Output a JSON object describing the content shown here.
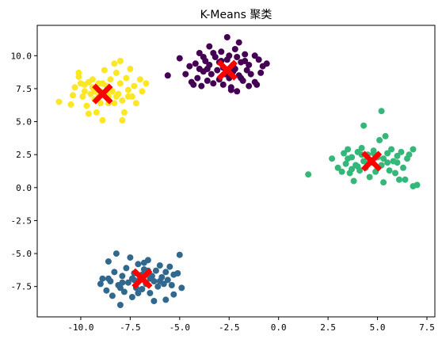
{
  "chart_data": {
    "type": "scatter",
    "title": "K-Means 聚类",
    "xlabel": "",
    "ylabel": "",
    "xlim": [
      -12.2,
      7.9
    ],
    "ylim": [
      -9.8,
      12.3
    ],
    "xticks": [
      -10.0,
      -7.5,
      -5.0,
      -2.5,
      0.0,
      2.5,
      5.0,
      7.5
    ],
    "xtick_labels": [
      "-10.0",
      "-7.5",
      "-5.0",
      "-2.5",
      "0.0",
      "2.5",
      "5.0",
      "7.5"
    ],
    "yticks": [
      -7.5,
      -5.0,
      -2.5,
      0.0,
      2.5,
      5.0,
      7.5,
      10.0
    ],
    "ytick_labels": [
      "-7.5",
      "-5.0",
      "-2.5",
      "0.0",
      "2.5",
      "5.0",
      "7.5",
      "10.0"
    ],
    "grid": false,
    "legend": "none",
    "clusters": [
      {
        "color": "#440154",
        "points": [
          [
            -5.6,
            8.5
          ],
          [
            -5.0,
            9.8
          ],
          [
            -4.7,
            8.6
          ],
          [
            -4.5,
            9.2
          ],
          [
            -4.4,
            8.0
          ],
          [
            -4.3,
            7.8
          ],
          [
            -4.2,
            9.4
          ],
          [
            -4.1,
            8.3
          ],
          [
            -4.0,
            10.2
          ],
          [
            -4.0,
            9.0
          ],
          [
            -3.9,
            7.7
          ],
          [
            -3.8,
            8.8
          ],
          [
            -3.7,
            9.6
          ],
          [
            -3.6,
            8.1
          ],
          [
            -3.5,
            10.7
          ],
          [
            -3.5,
            9.3
          ],
          [
            -3.4,
            8.6
          ],
          [
            -3.3,
            7.9
          ],
          [
            -3.2,
            9.9
          ],
          [
            -3.1,
            8.9
          ],
          [
            -3.0,
            9.5
          ],
          [
            -3.0,
            8.2
          ],
          [
            -2.9,
            10.3
          ],
          [
            -2.8,
            9.1
          ],
          [
            -2.8,
            7.8
          ],
          [
            -2.7,
            8.6
          ],
          [
            -2.6,
            9.7
          ],
          [
            -2.5,
            10.0
          ],
          [
            -2.5,
            8.3
          ],
          [
            -2.4,
            7.6
          ],
          [
            -2.3,
            9.3
          ],
          [
            -2.3,
            8.8
          ],
          [
            -2.2,
            10.5
          ],
          [
            -2.1,
            9.9
          ],
          [
            -2.1,
            7.3
          ],
          [
            -2.0,
            8.5
          ],
          [
            -2.0,
            11.0
          ],
          [
            -1.9,
            9.5
          ],
          [
            -1.8,
            8.1
          ],
          [
            -1.7,
            10.1
          ],
          [
            -1.6,
            8.9
          ],
          [
            -1.5,
            9.3
          ],
          [
            -1.5,
            7.7
          ],
          [
            -1.4,
            8.6
          ],
          [
            -1.2,
            10.0
          ],
          [
            -1.0,
            9.7
          ],
          [
            -0.9,
            8.7
          ],
          [
            -1.1,
            7.8
          ],
          [
            -2.6,
            11.4
          ],
          [
            -0.8,
            9.2
          ],
          [
            -1.2,
            8.0
          ],
          [
            -3.3,
            10.2
          ],
          [
            -2.9,
            9.6
          ],
          [
            -3.8,
            9.9
          ],
          [
            -2.2,
            9.0
          ],
          [
            -1.7,
            9.6
          ],
          [
            -2.4,
            7.4
          ],
          [
            -1.9,
            8.3
          ],
          [
            -3.6,
            9.0
          ],
          [
            -0.6,
            9.4
          ]
        ]
      },
      {
        "color": "#fde725",
        "points": [
          [
            -11.1,
            6.5
          ],
          [
            -10.5,
            6.3
          ],
          [
            -10.4,
            7.0
          ],
          [
            -10.3,
            7.6
          ],
          [
            -10.1,
            8.7
          ],
          [
            -10.0,
            7.9
          ],
          [
            -9.9,
            6.9
          ],
          [
            -9.8,
            7.3
          ],
          [
            -9.7,
            6.2
          ],
          [
            -9.6,
            8.0
          ],
          [
            -9.5,
            7.1
          ],
          [
            -9.4,
            7.6
          ],
          [
            -9.3,
            6.7
          ],
          [
            -9.2,
            5.7
          ],
          [
            -9.1,
            7.9
          ],
          [
            -9.0,
            7.3
          ],
          [
            -9.0,
            6.4
          ],
          [
            -8.9,
            5.1
          ],
          [
            -8.8,
            8.9
          ],
          [
            -8.7,
            7.7
          ],
          [
            -8.6,
            6.9
          ],
          [
            -8.5,
            8.2
          ],
          [
            -8.4,
            7.3
          ],
          [
            -8.3,
            6.4
          ],
          [
            -8.2,
            8.7
          ],
          [
            -8.1,
            7.1
          ],
          [
            -8.0,
            9.6
          ],
          [
            -8.0,
            7.9
          ],
          [
            -7.9,
            6.6
          ],
          [
            -7.8,
            5.7
          ],
          [
            -7.7,
            8.3
          ],
          [
            -7.6,
            7.4
          ],
          [
            -7.5,
            9.0
          ],
          [
            -7.4,
            6.9
          ],
          [
            -7.3,
            7.7
          ],
          [
            -7.2,
            6.4
          ],
          [
            -7.0,
            8.2
          ],
          [
            -6.9,
            7.3
          ],
          [
            -6.7,
            7.9
          ],
          [
            -9.8,
            7.8
          ],
          [
            -9.4,
            8.2
          ],
          [
            -8.6,
            6.4
          ],
          [
            -8.3,
            9.4
          ],
          [
            -7.9,
            5.1
          ],
          [
            -8.7,
            7.1
          ],
          [
            -9.1,
            6.9
          ],
          [
            -9.6,
            5.6
          ],
          [
            -10.1,
            8.4
          ],
          [
            -7.6,
            6.9
          ],
          [
            -8.9,
            7.9
          ],
          [
            -9.3,
            7.3
          ],
          [
            -8.2,
            6.9
          ]
        ]
      },
      {
        "color": "#35b779",
        "points": [
          [
            1.5,
            1.0
          ],
          [
            2.7,
            2.2
          ],
          [
            3.0,
            1.5
          ],
          [
            3.2,
            1.2
          ],
          [
            3.3,
            2.6
          ],
          [
            3.4,
            1.8
          ],
          [
            3.5,
            2.9
          ],
          [
            3.6,
            1.1
          ],
          [
            3.7,
            2.3
          ],
          [
            3.8,
            0.5
          ],
          [
            3.9,
            1.7
          ],
          [
            4.0,
            2.7
          ],
          [
            4.1,
            1.3
          ],
          [
            4.2,
            3.0
          ],
          [
            4.3,
            2.0
          ],
          [
            4.3,
            4.7
          ],
          [
            4.4,
            1.5
          ],
          [
            4.5,
            2.5
          ],
          [
            4.6,
            0.8
          ],
          [
            4.7,
            1.9
          ],
          [
            4.8,
            2.8
          ],
          [
            4.9,
            1.2
          ],
          [
            5.0,
            2.3
          ],
          [
            5.1,
            3.6
          ],
          [
            5.2,
            5.8
          ],
          [
            5.2,
            1.7
          ],
          [
            5.3,
            0.4
          ],
          [
            5.4,
            3.9
          ],
          [
            5.5,
            2.6
          ],
          [
            5.6,
            1.3
          ],
          [
            5.7,
            2.9
          ],
          [
            5.8,
            2.0
          ],
          [
            5.9,
            1.1
          ],
          [
            6.0,
            2.4
          ],
          [
            6.1,
            0.6
          ],
          [
            6.2,
            2.7
          ],
          [
            6.3,
            1.5
          ],
          [
            6.4,
            0.6
          ],
          [
            6.5,
            2.2
          ],
          [
            6.6,
            2.5
          ],
          [
            6.8,
            2.9
          ],
          [
            6.8,
            0.1
          ],
          [
            7.0,
            0.2
          ],
          [
            3.5,
            2.2
          ],
          [
            4.0,
            1.6
          ],
          [
            4.5,
            1.8
          ],
          [
            5.0,
            1.5
          ],
          [
            5.5,
            1.9
          ],
          [
            4.2,
            2.5
          ],
          [
            4.8,
            2.6
          ],
          [
            5.3,
            2.2
          ],
          [
            3.7,
            1.4
          ],
          [
            6.0,
            1.9
          ]
        ]
      },
      {
        "color": "#31688e",
        "points": [
          [
            -9.0,
            -7.3
          ],
          [
            -8.9,
            -6.9
          ],
          [
            -8.7,
            -7.8
          ],
          [
            -8.6,
            -5.6
          ],
          [
            -8.5,
            -7.1
          ],
          [
            -8.4,
            -8.2
          ],
          [
            -8.3,
            -6.4
          ],
          [
            -8.2,
            -5.0
          ],
          [
            -8.1,
            -7.4
          ],
          [
            -8.0,
            -8.9
          ],
          [
            -7.9,
            -6.7
          ],
          [
            -7.8,
            -7.9
          ],
          [
            -7.7,
            -6.1
          ],
          [
            -7.6,
            -7.2
          ],
          [
            -7.5,
            -5.3
          ],
          [
            -7.4,
            -8.3
          ],
          [
            -7.3,
            -6.5
          ],
          [
            -7.2,
            -7.6
          ],
          [
            -7.1,
            -5.8
          ],
          [
            -7.0,
            -6.9
          ],
          [
            -6.9,
            -7.7
          ],
          [
            -6.8,
            -6.2
          ],
          [
            -6.7,
            -7.3
          ],
          [
            -6.6,
            -5.5
          ],
          [
            -6.5,
            -8.0
          ],
          [
            -6.4,
            -6.7
          ],
          [
            -6.3,
            -7.1
          ],
          [
            -6.2,
            -6.3
          ],
          [
            -6.1,
            -7.5
          ],
          [
            -6.0,
            -5.9
          ],
          [
            -5.9,
            -6.8
          ],
          [
            -5.8,
            -7.3
          ],
          [
            -5.7,
            -6.4
          ],
          [
            -5.6,
            -7.0
          ],
          [
            -5.5,
            -6.0
          ],
          [
            -5.4,
            -7.4
          ],
          [
            -5.3,
            -8.1
          ],
          [
            -5.1,
            -6.5
          ],
          [
            -5.0,
            -5.1
          ],
          [
            -4.9,
            -7.6
          ],
          [
            -7.4,
            -6.9
          ],
          [
            -6.6,
            -6.3
          ],
          [
            -7.9,
            -7.2
          ],
          [
            -5.7,
            -8.5
          ],
          [
            -6.3,
            -8.6
          ],
          [
            -6.9,
            -6.6
          ],
          [
            -7.3,
            -7.0
          ],
          [
            -8.6,
            -6.9
          ],
          [
            -6.0,
            -7.1
          ],
          [
            -6.8,
            -5.7
          ],
          [
            -7.1,
            -8.0
          ],
          [
            -5.3,
            -6.6
          ],
          [
            -8.0,
            -7.6
          ],
          [
            -6.5,
            -6.9
          ]
        ]
      }
    ],
    "centroids": {
      "color": "#ff0000",
      "marker": "x",
      "points": [
        [
          -2.6,
          8.9
        ],
        [
          -8.9,
          7.1
        ],
        [
          4.7,
          2.0
        ],
        [
          -6.9,
          -6.9
        ]
      ]
    }
  }
}
